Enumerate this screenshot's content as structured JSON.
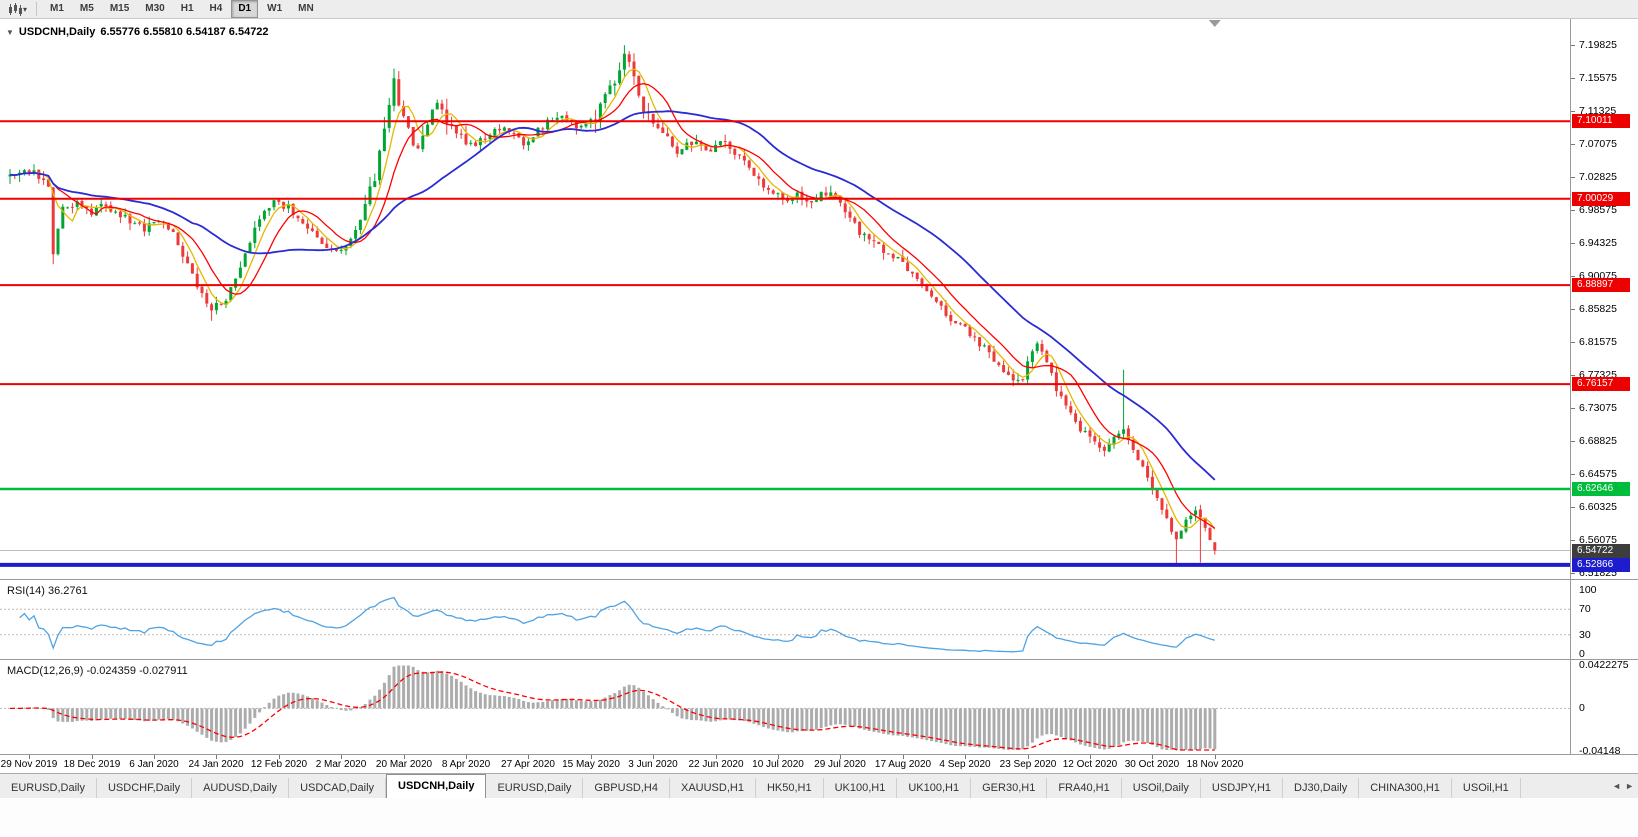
{
  "toolbar": {
    "timeframes": [
      {
        "label": "M1",
        "active": false
      },
      {
        "label": "M5",
        "active": false
      },
      {
        "label": "M15",
        "active": false
      },
      {
        "label": "M30",
        "active": false
      },
      {
        "label": "H1",
        "active": false
      },
      {
        "label": "H4",
        "active": false
      },
      {
        "label": "D1",
        "active": true
      },
      {
        "label": "W1",
        "active": false
      },
      {
        "label": "MN",
        "active": false
      }
    ]
  },
  "header": {
    "collapse_arrow": "▼",
    "title": "USDCNH,Daily",
    "ohlc": "6.55776 6.55810 6.54187 6.54722"
  },
  "indicators": {
    "rsi": {
      "label": "RSI(14) 36.2761",
      "period": 14,
      "value": 36.2761,
      "scale_labels": [
        "100",
        "70",
        "30",
        "0"
      ],
      "scale_values": [
        100,
        70,
        30,
        0
      ],
      "dotted_levels": [
        70,
        30
      ],
      "color": "#4FA3E3"
    },
    "macd": {
      "label": "MACD(12,26,9) -0.024359 -0.027911",
      "fast": 12,
      "slow": 26,
      "signal": 9,
      "values": [
        -0.024359,
        -0.027911
      ],
      "scale_labels": [
        "0.0422275",
        "0",
        "-0.04148"
      ],
      "scale_top": 0.0422275,
      "scale_bottom": -0.04148,
      "hist_color": "#ACACAC",
      "signal_color": "#FF0000"
    }
  },
  "chart_data": {
    "type": "candlestick",
    "symbol": "USDCNH",
    "timeframe": "Daily",
    "last_bar": {
      "open": 6.55776,
      "high": 6.5581,
      "low": 6.54187,
      "close": 6.54722
    },
    "bar_count": 252,
    "seed": 77,
    "candle_up_color": "#00A532",
    "candle_down_color": "#EC3A3A",
    "y_axis": {
      "top_price": 7.19825,
      "bottom_price": 6.51825,
      "ticks": [
        "7.19825",
        "7.15575",
        "7.11325",
        "7.07075",
        "7.02825",
        "6.98575",
        "6.94325",
        "6.90075",
        "6.85825",
        "6.81575",
        "6.77325",
        "6.73075",
        "6.68825",
        "6.64575",
        "6.60325",
        "6.56075",
        "6.51825"
      ]
    },
    "x_axis": {
      "first_label_bar": 4,
      "label_step": 13,
      "labels": [
        "29 Nov 2019",
        "18 Dec 2019",
        "6 Jan 2020",
        "24 Jan 2020",
        "12 Feb 2020",
        "2 Mar 2020",
        "20 Mar 2020",
        "8 Apr 2020",
        "27 Apr 2020",
        "15 May 2020",
        "3 Jun 2020",
        "22 Jun 2020",
        "10 Jul 2020",
        "29 Jul 2020",
        "17 Aug 2020",
        "4 Sep 2020",
        "23 Sep 2020",
        "12 Oct 2020",
        "30 Oct 2020",
        "18 Nov 2020"
      ]
    },
    "close_anchors": [
      [
        0,
        7.028
      ],
      [
        4,
        7.038
      ],
      [
        6,
        7.032
      ],
      [
        8,
        7.022
      ],
      [
        9,
        6.93
      ],
      [
        11,
        6.985
      ],
      [
        14,
        6.995
      ],
      [
        17,
        6.98
      ],
      [
        19,
        6.992
      ],
      [
        22,
        6.985
      ],
      [
        25,
        6.972
      ],
      [
        28,
        6.962
      ],
      [
        30,
        6.968
      ],
      [
        32,
        6.972
      ],
      [
        34,
        6.955
      ],
      [
        36,
        6.93
      ],
      [
        38,
        6.905
      ],
      [
        40,
        6.875
      ],
      [
        42,
        6.858
      ],
      [
        44,
        6.865
      ],
      [
        45,
        6.872
      ],
      [
        47,
        6.9
      ],
      [
        49,
        6.93
      ],
      [
        51,
        6.96
      ],
      [
        53,
        6.985
      ],
      [
        55,
        6.995
      ],
      [
        58,
        6.99
      ],
      [
        60,
        6.975
      ],
      [
        62,
        6.962
      ],
      [
        64,
        6.95
      ],
      [
        66,
        6.938
      ],
      [
        68,
        6.932
      ],
      [
        70,
        6.94
      ],
      [
        72,
        6.962
      ],
      [
        74,
        6.99
      ],
      [
        76,
        7.03
      ],
      [
        78,
        7.09
      ],
      [
        80,
        7.148
      ],
      [
        82,
        7.1
      ],
      [
        83,
        7.085
      ],
      [
        85,
        7.062
      ],
      [
        87,
        7.095
      ],
      [
        89,
        7.125
      ],
      [
        91,
        7.1
      ],
      [
        93,
        7.082
      ],
      [
        96,
        7.068
      ],
      [
        99,
        7.078
      ],
      [
        102,
        7.092
      ],
      [
        105,
        7.082
      ],
      [
        107,
        7.07
      ],
      [
        109,
        7.082
      ],
      [
        112,
        7.098
      ],
      [
        115,
        7.108
      ],
      [
        118,
        7.092
      ],
      [
        120,
        7.1
      ],
      [
        122,
        7.108
      ],
      [
        124,
        7.13
      ],
      [
        126,
        7.155
      ],
      [
        128,
        7.188
      ],
      [
        130,
        7.155
      ],
      [
        132,
        7.12
      ],
      [
        134,
        7.1
      ],
      [
        135,
        7.092
      ],
      [
        137,
        7.08
      ],
      [
        139,
        7.062
      ],
      [
        141,
        7.075
      ],
      [
        143,
        7.07
      ],
      [
        145,
        7.062
      ],
      [
        147,
        7.068
      ],
      [
        149,
        7.075
      ],
      [
        151,
        7.06
      ],
      [
        153,
        7.045
      ],
      [
        155,
        7.03
      ],
      [
        157,
        7.015
      ],
      [
        159,
        7.008
      ],
      [
        160,
        7.005
      ],
      [
        162,
        6.998
      ],
      [
        164,
        7.005
      ],
      [
        166,
        6.995
      ],
      [
        168,
        7.002
      ],
      [
        170,
        7.008
      ],
      [
        173,
        6.998
      ],
      [
        175,
        6.975
      ],
      [
        177,
        6.958
      ],
      [
        179,
        6.948
      ],
      [
        181,
        6.938
      ],
      [
        183,
        6.93
      ],
      [
        186,
        6.918
      ],
      [
        188,
        6.905
      ],
      [
        190,
        6.89
      ],
      [
        192,
        6.875
      ],
      [
        194,
        6.858
      ],
      [
        196,
        6.845
      ],
      [
        199,
        6.835
      ],
      [
        201,
        6.82
      ],
      [
        203,
        6.808
      ],
      [
        205,
        6.792
      ],
      [
        207,
        6.778
      ],
      [
        209,
        6.765
      ],
      [
        211,
        6.772
      ],
      [
        212,
        6.79
      ],
      [
        214,
        6.81
      ],
      [
        216,
        6.788
      ],
      [
        218,
        6.755
      ],
      [
        220,
        6.73
      ],
      [
        222,
        6.712
      ],
      [
        224,
        6.698
      ],
      [
        226,
        6.685
      ],
      [
        228,
        6.672
      ],
      [
        230,
        6.692
      ],
      [
        232,
        6.7
      ],
      [
        234,
        6.675
      ],
      [
        236,
        6.655
      ],
      [
        237,
        6.645
      ],
      [
        239,
        6.615
      ],
      [
        241,
        6.585
      ],
      [
        243,
        6.562
      ],
      [
        245,
        6.583
      ],
      [
        247,
        6.598
      ],
      [
        249,
        6.578
      ],
      [
        250,
        6.565
      ],
      [
        251,
        6.5477
      ]
    ],
    "overrides": [
      {
        "i": 9,
        "low": 6.916
      },
      {
        "i": 42,
        "low": 6.843
      },
      {
        "i": 80,
        "high": 7.168
      },
      {
        "i": 128,
        "high": 7.198
      },
      {
        "i": 232,
        "high": 6.78
      },
      {
        "i": 243,
        "low": 6.5295
      },
      {
        "i": 248,
        "low": 6.5318
      }
    ],
    "moving_averages": [
      {
        "name": "ma-fast",
        "period": 5,
        "color": "#E6B800",
        "width": 1.3
      },
      {
        "name": "ma-mid",
        "period": 10,
        "color": "#FF0000",
        "width": 1.3
      },
      {
        "name": "ma-slow",
        "period": 30,
        "color": "#2B2BD5",
        "width": 1.8
      }
    ],
    "horizontal_lines": [
      {
        "value": 7.10011,
        "label": "7.10011",
        "color": "#EC0000",
        "width": 2
      },
      {
        "value": 7.00029,
        "label": "7.00029",
        "color": "#EC0000",
        "width": 2
      },
      {
        "value": 6.88897,
        "label": "6.88897",
        "color": "#EC0000",
        "width": 2
      },
      {
        "value": 6.76157,
        "label": "6.76157",
        "color": "#EC0000",
        "width": 2
      },
      {
        "value": 6.62646,
        "label": "6.62646",
        "color": "#00BE3C",
        "width": 2.5
      },
      {
        "value": 6.52866,
        "label": "6.52866",
        "color": "#1D1DCE",
        "width": 4
      }
    ],
    "current_price": {
      "value": 6.54722,
      "label": "6.54722",
      "tag_color": "#3D3D3D",
      "line_color": "#BDBDBD"
    }
  },
  "tabs": {
    "scroll_left": "◄",
    "scroll_right": "►",
    "items": [
      {
        "label": "EURUSD,Daily",
        "active": false
      },
      {
        "label": "USDCHF,Daily",
        "active": false
      },
      {
        "label": "AUDUSD,Daily",
        "active": false
      },
      {
        "label": "USDCAD,Daily",
        "active": false
      },
      {
        "label": "USDCNH,Daily",
        "active": true
      },
      {
        "label": "EURUSD,Daily",
        "active": false
      },
      {
        "label": "GBPUSD,H4",
        "active": false
      },
      {
        "label": "XAUUSD,H1",
        "active": false
      },
      {
        "label": "HK50,H1",
        "active": false
      },
      {
        "label": "UK100,H1",
        "active": false
      },
      {
        "label": "UK100,H1",
        "active": false
      },
      {
        "label": "GER30,H1",
        "active": false
      },
      {
        "label": "FRA40,H1",
        "active": false
      },
      {
        "label": "USOil,Daily",
        "active": false
      },
      {
        "label": "USDJPY,H1",
        "active": false
      },
      {
        "label": "DJ30,Daily",
        "active": false
      },
      {
        "label": "CHINA300,H1",
        "active": false
      },
      {
        "label": "USOil,H1",
        "active": false
      }
    ]
  }
}
